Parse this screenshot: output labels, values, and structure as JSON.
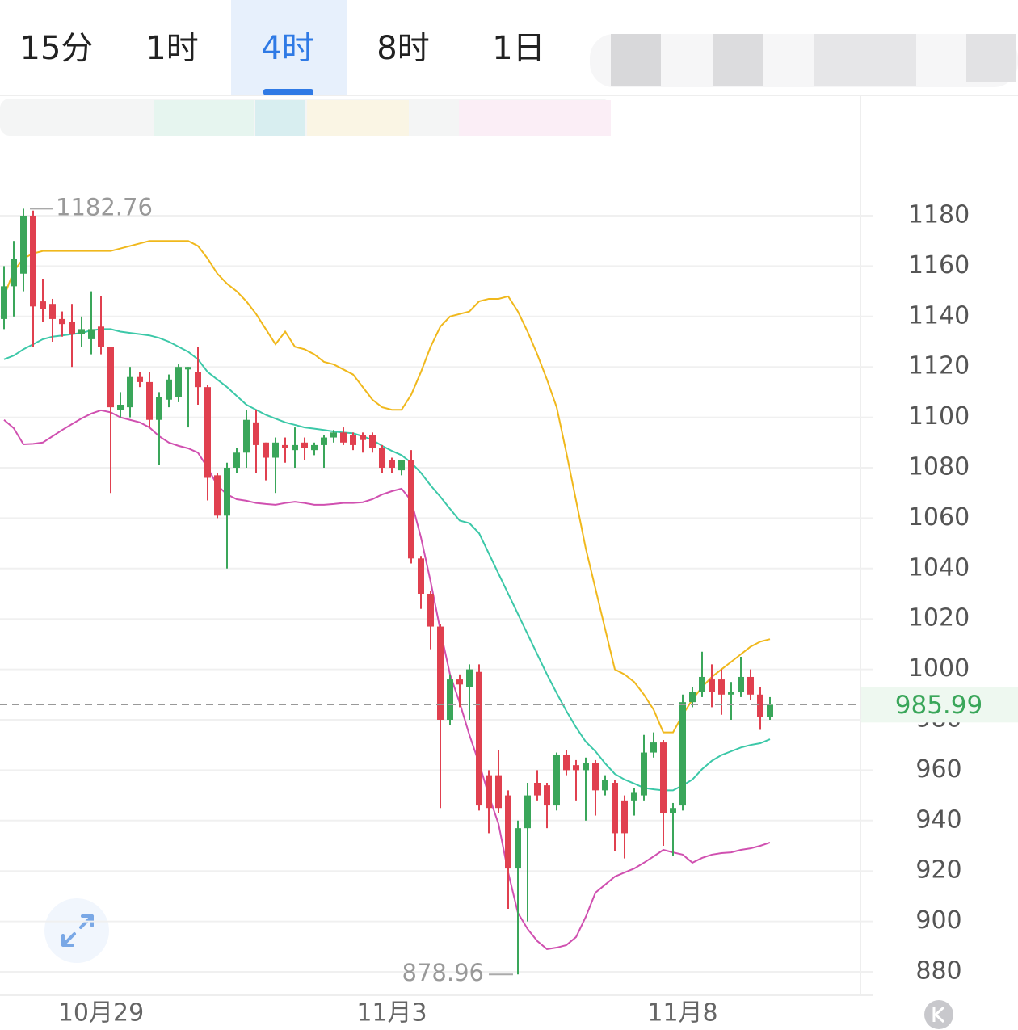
{
  "tabs": [
    "15分",
    "1时",
    "4时",
    "8时",
    "1日"
  ],
  "active_tab": 2,
  "chart_data": {
    "type": "candlestick",
    "categories": [
      null,
      null,
      null,
      null,
      null,
      null,
      null,
      null,
      null,
      null,
      "10月29",
      null,
      null,
      null,
      null,
      null,
      null,
      null,
      null,
      null,
      null,
      null,
      null,
      null,
      null,
      null,
      null,
      null,
      null,
      null,
      null,
      null,
      null,
      null,
      null,
      null,
      null,
      null,
      null,
      null,
      "11月3",
      null,
      null,
      null,
      null,
      null,
      null,
      null,
      null,
      null,
      null,
      null,
      null,
      null,
      null,
      null,
      null,
      null,
      null,
      null,
      null,
      null,
      null,
      null,
      null,
      null,
      null,
      null,
      null,
      null,
      "11月8",
      null,
      null,
      null,
      null,
      null,
      null,
      null,
      null,
      null
    ],
    "open": [
      1139,
      1152,
      1157,
      1180,
      1146,
      1145,
      1139,
      1138,
      1133,
      1131,
      1136,
      1128,
      1103,
      1104,
      1116,
      1114,
      1099,
      1107,
      1108,
      1119,
      1118,
      1112,
      1077,
      1061,
      1080,
      1086,
      1098,
      1090,
      1084,
      1089,
      1087,
      1090,
      1087,
      1089,
      1092,
      1094,
      1093,
      1093,
      1093,
      1088,
      1083,
      1079,
      1083,
      1044,
      1030,
      1017,
      980,
      996,
      993,
      999,
      958,
      958,
      950,
      921,
      937,
      955,
      954,
      946,
      966,
      962,
      960,
      963,
      952,
      955,
      948,
      948,
      950,
      967,
      971,
      943,
      946,
      987,
      991,
      996,
      996,
      990,
      991,
      997,
      990,
      981
    ],
    "high": [
      1160,
      1170,
      1182.76,
      1182,
      1155,
      1147,
      1142,
      1145,
      1140,
      1150,
      1148,
      1128,
      1110,
      1120,
      1118,
      1118,
      1110,
      1117,
      1121,
      1120,
      1128,
      1113,
      1078,
      1082,
      1088,
      1103,
      1103,
      1090,
      1092,
      1092,
      1096,
      1092,
      1090,
      1093,
      1095,
      1096,
      1094,
      1094,
      1094,
      1089,
      1084,
      1083,
      1087,
      1045,
      1031,
      1018,
      998,
      998,
      1002,
      1002,
      960,
      968,
      952,
      940,
      955,
      960,
      955,
      967,
      968,
      964,
      965,
      964,
      958,
      956,
      950,
      953,
      974,
      975,
      972,
      947,
      990,
      993,
      1007,
      1002,
      1000,
      995,
      1005,
      1000,
      993,
      989
    ],
    "low": [
      1135,
      1140,
      1150,
      1128,
      1138,
      1130,
      1132,
      1120,
      1128,
      1125,
      1125,
      1070,
      1100,
      1100,
      1112,
      1096,
      1081,
      1104,
      1106,
      1096,
      1105,
      1067,
      1060,
      1040,
      1078,
      1080,
      1078,
      1075,
      1070,
      1082,
      1080,
      1083,
      1085,
      1080,
      1090,
      1089,
      1087,
      1086,
      1086,
      1078,
      1078,
      1077,
      1042,
      1024,
      1008,
      945,
      978,
      985,
      980,
      944,
      935,
      943,
      905,
      878.96,
      900,
      948,
      937,
      944,
      958,
      948,
      940,
      942,
      950,
      928,
      925,
      942,
      948,
      965,
      930,
      926,
      944,
      985,
      989,
      985,
      982,
      980,
      989,
      988,
      976,
      980
    ],
    "close": [
      1152,
      1163,
      1180,
      1144,
      1143,
      1139,
      1137,
      1133,
      1135,
      1135,
      1128,
      1104,
      1105,
      1116,
      1114,
      1099,
      1108,
      1115,
      1120,
      1120,
      1112,
      1076,
      1061,
      1080,
      1086,
      1099,
      1089,
      1084,
      1090,
      1088,
      1089,
      1088,
      1089,
      1092,
      1094,
      1090,
      1089,
      1091,
      1088,
      1080,
      1080,
      1083,
      1044,
      1030,
      1017,
      980,
      996,
      994,
      1000,
      946,
      945,
      945,
      921,
      937,
      950,
      950,
      946,
      966,
      960,
      960,
      963,
      952,
      956,
      935,
      935,
      951,
      967,
      971,
      943,
      945,
      987,
      991,
      997,
      991,
      990,
      991,
      997,
      990,
      981,
      985.99
    ],
    "up_color": "#3aa65a",
    "down_color": "#e0404f",
    "bands": [
      {
        "color": "#f0b81c",
        "values": [
          1148,
          1158,
          1163,
          1165,
          1166,
          1166,
          1166,
          1166,
          1166,
          1166,
          1166,
          1166,
          1167,
          1168,
          1169,
          1170,
          1170,
          1170,
          1170,
          1170,
          1168,
          1163,
          1157,
          1153,
          1150,
          1146,
          1141,
          1135,
          1129,
          1134,
          1128,
          1127,
          1125,
          1122,
          1121,
          1119,
          1117,
          1112,
          1107,
          1104,
          1103,
          1103,
          1109,
          1118,
          1128,
          1136,
          1140,
          1141,
          1142,
          1146,
          1147,
          1147,
          1148,
          1142,
          1134,
          1125,
          1115,
          1104,
          1086,
          1067,
          1048,
          1032,
          1016,
          1000,
          998,
          995,
          990,
          984,
          975,
          975,
          982,
          988,
          993,
          997,
          1000,
          1003,
          1006,
          1009,
          1011,
          1012
        ]
      },
      {
        "color": "#3cc8a8",
        "values": [
          1123,
          1124.5,
          1127,
          1129,
          1131,
          1132,
          1132.5,
          1133,
          1133.5,
          1134.5,
          1135,
          1135,
          1134,
          1133.5,
          1133,
          1132.5,
          1131.5,
          1130,
          1128,
          1126,
          1123,
          1118,
          1115,
          1112,
          1108.5,
          1105,
          1103,
          1101,
          1099.5,
          1098,
          1097,
          1096,
          1095.5,
          1095,
          1094.4,
          1094,
          1093.7,
          1092.5,
          1091,
          1088.7,
          1086.7,
          1085,
          1082,
          1078,
          1073,
          1068.5,
          1063.7,
          1059,
          1058,
          1054,
          1046,
          1038,
          1030,
          1022,
          1014,
          1006,
          998,
          990.6,
          983.5,
          977,
          971.3,
          967.5,
          962.7,
          958.5,
          956.3,
          954.7,
          953,
          952.4,
          952,
          952,
          954,
          956.3,
          960.4,
          963.7,
          966,
          967.5,
          969,
          970,
          970.7,
          972.3
        ]
      },
      {
        "color": "#d050b0",
        "values": [
          1099,
          1095.7,
          1089.3,
          1089.5,
          1090,
          1092.5,
          1095,
          1097.3,
          1099.6,
          1101.5,
          1102.8,
          1102,
          1100,
          1099,
          1098,
          1096,
          1092.5,
          1090,
          1088.7,
          1087.7,
          1086,
          1080,
          1073,
          1069.4,
          1067.5,
          1066.9,
          1066,
          1065.6,
          1065.3,
          1066,
          1066.5,
          1066,
          1065.3,
          1065.3,
          1065.6,
          1066,
          1066,
          1066.3,
          1067.5,
          1069.4,
          1070.7,
          1071.7,
          1066.9,
          1052.4,
          1034.8,
          1015.6,
          998,
          986.7,
          974,
          962.7,
          950,
          938.7,
          919.4,
          903.4,
          897,
          892.2,
          889,
          889.6,
          890.6,
          893.8,
          901.8,
          911.4,
          914.6,
          917.8,
          919.4,
          921,
          923.3,
          925.8,
          928.4,
          927.4,
          926.5,
          923.3,
          925.2,
          926.5,
          927.1,
          927.4,
          928.4,
          929,
          930,
          931.3
        ]
      }
    ],
    "high_label": 1182.76,
    "low_label": 878.96,
    "last_price": 985.99,
    "ylim": [
      870,
      1220
    ],
    "yticks": [
      880,
      900,
      920,
      940,
      960,
      980,
      1000,
      1020,
      1040,
      1060,
      1080,
      1100,
      1120,
      1140,
      1160,
      1180
    ],
    "grid": true
  }
}
